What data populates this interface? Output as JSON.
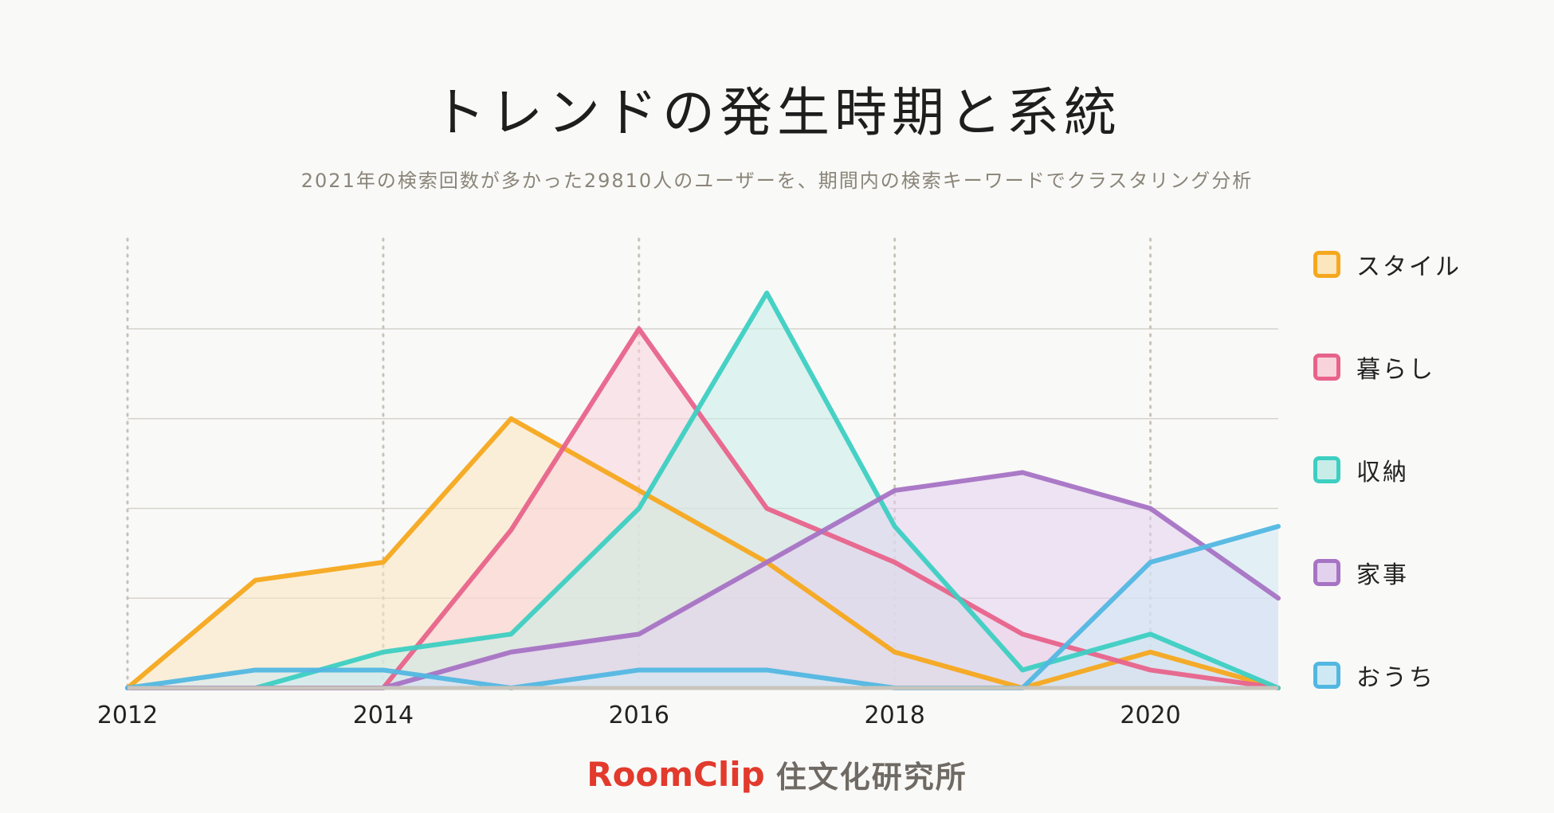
{
  "title": "トレンドの発生時期と系統",
  "subtitle": "2021年の検索回数が多かった29810人のユーザーを、期間内の検索キーワードでクラスタリング分析",
  "footer": {
    "logo": "RoomClip",
    "org": "住文化研究所"
  },
  "chart_data": {
    "type": "area",
    "title": "トレンドの発生時期と系統",
    "x": [
      2012,
      2013,
      2014,
      2015,
      2016,
      2017,
      2018,
      2019,
      2020,
      2021
    ],
    "xticks": [
      2012,
      2014,
      2016,
      2018,
      2020
    ],
    "xlim": [
      2012,
      2021
    ],
    "ylim": [
      0,
      100
    ],
    "grid": "horizontal lines at 25, 50, 75, 100; dotted vertical lines at tick years",
    "legend_position": "right",
    "series": [
      {
        "name": "スタイル",
        "color": "#f5a81e",
        "fill": "#fbe6bd",
        "values": [
          0,
          30,
          35,
          75,
          55,
          35,
          10,
          0,
          10,
          0
        ]
      },
      {
        "name": "暮らし",
        "color": "#e8638b",
        "fill": "#f9d3dc",
        "values": [
          0,
          0,
          0,
          44,
          100,
          50,
          35,
          15,
          5,
          0
        ]
      },
      {
        "name": "収納",
        "color": "#3dcfc2",
        "fill": "#c8ede8",
        "values": [
          0,
          0,
          10,
          15,
          50,
          110,
          45,
          5,
          15,
          0
        ]
      },
      {
        "name": "家事",
        "color": "#a773c4",
        "fill": "#e3d2ee",
        "values": [
          0,
          0,
          0,
          10,
          15,
          35,
          55,
          60,
          50,
          25
        ]
      },
      {
        "name": "おうち",
        "color": "#52b7e1",
        "fill": "#cfe9f4",
        "values": [
          0,
          5,
          5,
          0,
          5,
          5,
          0,
          0,
          35,
          45
        ]
      }
    ]
  }
}
